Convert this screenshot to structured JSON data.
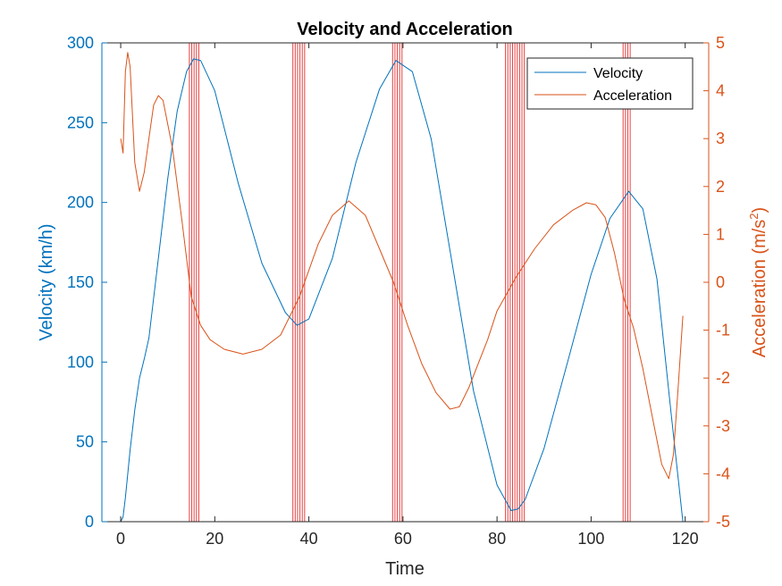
{
  "chart_data": {
    "type": "line",
    "title": "Velocity and Acceleration",
    "xlabel": "Time",
    "ylabel_left": "Velocity (km/h)",
    "ylabel_right_base": "Acceleration (m/s",
    "ylabel_right_sup": "2",
    "ylabel_right_close": ")",
    "xlim": [
      -4,
      125
    ],
    "ylim_left": [
      0,
      300
    ],
    "ylim_right": [
      -5,
      5
    ],
    "xticks": [
      0,
      20,
      40,
      60,
      80,
      100,
      120
    ],
    "yticks_left": [
      0,
      50,
      100,
      150,
      200,
      250,
      300
    ],
    "yticks_right": [
      -5,
      -4,
      -3,
      -2,
      -1,
      0,
      1,
      2,
      3,
      4,
      5
    ],
    "grid": false,
    "legend_position": "top-right",
    "colors": {
      "velocity": "#0072BD",
      "acceleration": "#D95319",
      "markers": "#E02020",
      "text": "#000000"
    },
    "series": [
      {
        "name": "Velocity",
        "axis": "left",
        "x": [
          0,
          0.5,
          1,
          2,
          3,
          4,
          5,
          6,
          8,
          10,
          12,
          14,
          15.5,
          17,
          20,
          25,
          30,
          35,
          37.5,
          40,
          45,
          50,
          55,
          58.5,
          62,
          66,
          70,
          75,
          80,
          83,
          84.5,
          86,
          90,
          95,
          100,
          104,
          108,
          111,
          114,
          117,
          119.5
        ],
        "y": [
          0,
          3,
          15,
          45,
          70,
          90,
          102,
          115,
          165,
          215,
          257,
          282,
          290,
          289,
          270,
          212,
          162,
          131,
          123,
          127,
          165,
          225,
          271,
          289,
          282,
          240,
          170,
          82,
          23,
          7,
          8,
          14,
          46,
          100,
          155,
          190,
          207,
          196,
          152,
          68,
          0
        ]
      },
      {
        "name": "Acceleration",
        "axis": "right",
        "x": [
          0,
          0.5,
          1,
          1.5,
          2,
          3,
          4,
          5,
          6,
          7,
          8,
          9,
          11,
          13,
          15,
          17,
          19,
          22,
          26,
          30,
          34,
          38,
          42,
          45,
          48.5,
          52,
          55,
          58,
          61,
          64,
          67,
          70,
          72,
          74,
          76,
          78,
          80,
          84,
          88,
          92,
          96,
          99,
          101,
          103,
          105,
          107,
          109,
          111,
          113,
          115,
          116.5,
          117.5,
          118.5,
          119.5
        ],
        "y": [
          3.0,
          2.7,
          4.4,
          4.8,
          4.5,
          2.5,
          1.9,
          2.3,
          3.0,
          3.7,
          3.9,
          3.8,
          2.8,
          1.3,
          -0.3,
          -0.9,
          -1.2,
          -1.4,
          -1.5,
          -1.4,
          -1.1,
          -0.3,
          0.8,
          1.4,
          1.7,
          1.4,
          0.7,
          0.0,
          -0.9,
          -1.7,
          -2.3,
          -2.65,
          -2.6,
          -2.2,
          -1.7,
          -1.2,
          -0.6,
          0.1,
          0.7,
          1.2,
          1.5,
          1.66,
          1.62,
          1.35,
          0.6,
          -0.35,
          -0.95,
          -1.8,
          -2.8,
          -3.8,
          -4.1,
          -3.6,
          -2.2,
          -0.7
        ]
      }
    ],
    "marker_lines_x": [
      14.6,
      15.1,
      15.6,
      16.1,
      16.6,
      36.6,
      37.1,
      37.6,
      38.1,
      38.6,
      39.1,
      57.8,
      58.3,
      58.8,
      59.3,
      59.8,
      81.8,
      82.3,
      82.8,
      83.3,
      83.8,
      84.3,
      84.8,
      85.3,
      85.8,
      106.8,
      107.3,
      107.8,
      108.3
    ]
  }
}
